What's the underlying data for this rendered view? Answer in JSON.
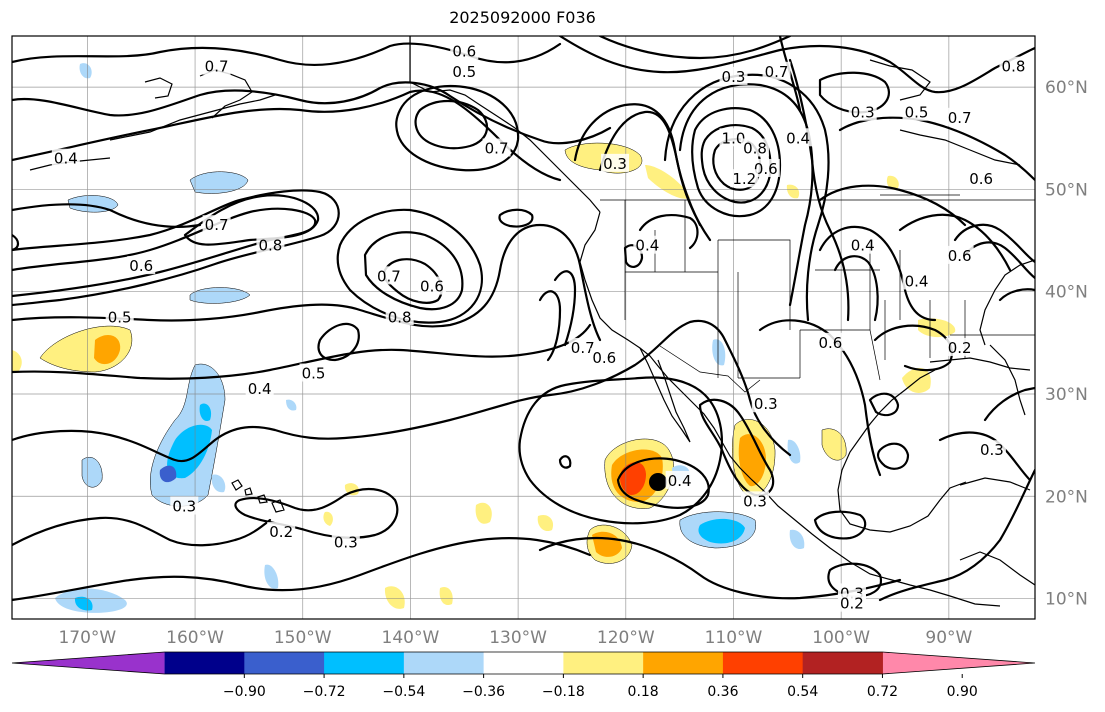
{
  "title": "2025092000 F036",
  "map": {
    "lon_range": [
      -177,
      -82
    ],
    "lat_range": [
      8,
      65
    ],
    "lon_ticks": [
      "170°W",
      "160°W",
      "150°W",
      "140°W",
      "130°W",
      "120°W",
      "110°W",
      "100°W",
      "90°W"
    ],
    "lat_ticks": [
      "10°N",
      "20°N",
      "30°N",
      "40°N",
      "50°N",
      "60°N"
    ],
    "contour_labels": [
      {
        "text": "0.6",
        "lon": -135,
        "lat": 63.5
      },
      {
        "text": "0.7",
        "lon": -158,
        "lat": 62
      },
      {
        "text": "0.5",
        "lon": -135,
        "lat": 61.5
      },
      {
        "text": "0.3",
        "lon": -110,
        "lat": 61
      },
      {
        "text": "0.7",
        "lon": -106,
        "lat": 61.5
      },
      {
        "text": "0.8",
        "lon": -84,
        "lat": 62
      },
      {
        "text": "0.3",
        "lon": -98,
        "lat": 57.5
      },
      {
        "text": "0.5",
        "lon": -93,
        "lat": 57.5
      },
      {
        "text": "0.7",
        "lon": -89,
        "lat": 57
      },
      {
        "text": "0.4",
        "lon": -172,
        "lat": 53
      },
      {
        "text": "0.7",
        "lon": -132,
        "lat": 54
      },
      {
        "text": "0.3",
        "lon": -121,
        "lat": 52.5
      },
      {
        "text": "1.0",
        "lon": -110,
        "lat": 55
      },
      {
        "text": "0.8",
        "lon": -108,
        "lat": 54
      },
      {
        "text": "0.6",
        "lon": -107,
        "lat": 52
      },
      {
        "text": "0.4",
        "lon": -104,
        "lat": 55
      },
      {
        "text": "1.2",
        "lon": -109,
        "lat": 51
      },
      {
        "text": "0.6",
        "lon": -87,
        "lat": 51
      },
      {
        "text": "0.7",
        "lon": -158,
        "lat": 46.5
      },
      {
        "text": "0.8",
        "lon": -153,
        "lat": 44.5
      },
      {
        "text": "0.4",
        "lon": -118,
        "lat": 44.5
      },
      {
        "text": "0.4",
        "lon": -98,
        "lat": 44.5
      },
      {
        "text": "0.6",
        "lon": -89,
        "lat": 43.5
      },
      {
        "text": "0.6",
        "lon": -165,
        "lat": 42.5
      },
      {
        "text": "0.7",
        "lon": -142,
        "lat": 41.5
      },
      {
        "text": "0.6",
        "lon": -138,
        "lat": 40.5
      },
      {
        "text": "0.4",
        "lon": -93,
        "lat": 41
      },
      {
        "text": "0.5",
        "lon": -167,
        "lat": 37.5
      },
      {
        "text": "0.8",
        "lon": -141,
        "lat": 37.5
      },
      {
        "text": "0.2",
        "lon": -89,
        "lat": 34.5
      },
      {
        "text": "0.6",
        "lon": -101,
        "lat": 35
      },
      {
        "text": "0.7",
        "lon": -124,
        "lat": 34.5
      },
      {
        "text": "0.6",
        "lon": -122,
        "lat": 33.5
      },
      {
        "text": "0.5",
        "lon": -149,
        "lat": 32
      },
      {
        "text": "0.4",
        "lon": -154,
        "lat": 30.5
      },
      {
        "text": "0.3",
        "lon": -107,
        "lat": 29
      },
      {
        "text": "0.3",
        "lon": -86,
        "lat": 24.5
      },
      {
        "text": "0.4",
        "lon": -115,
        "lat": 21.5
      },
      {
        "text": "0.3",
        "lon": -108,
        "lat": 19.5
      },
      {
        "text": "0.3",
        "lon": -161,
        "lat": 19
      },
      {
        "text": "0.2",
        "lon": -152,
        "lat": 16.5
      },
      {
        "text": "0.3",
        "lon": -146,
        "lat": 15.5
      },
      {
        "text": "0.3",
        "lon": -99,
        "lat": 10.5
      },
      {
        "text": "0.2",
        "lon": -99,
        "lat": 9.5
      }
    ],
    "colors": {
      "coast": "#000000",
      "grid": "#808080",
      "contour": "#000000"
    }
  },
  "colorbar": {
    "ticks": [
      "−0.90",
      "−0.72",
      "−0.54",
      "−0.36",
      "−0.18",
      "0.18",
      "0.36",
      "0.54",
      "0.72",
      "0.90"
    ],
    "colors": [
      "#9932cc",
      "#00008b",
      "#3a5fcd",
      "#00bfff",
      "#add8f9",
      "#ffffff",
      "#fff080",
      "#ffa500",
      "#ff4000",
      "#b22222",
      "#ff88aa"
    ]
  }
}
